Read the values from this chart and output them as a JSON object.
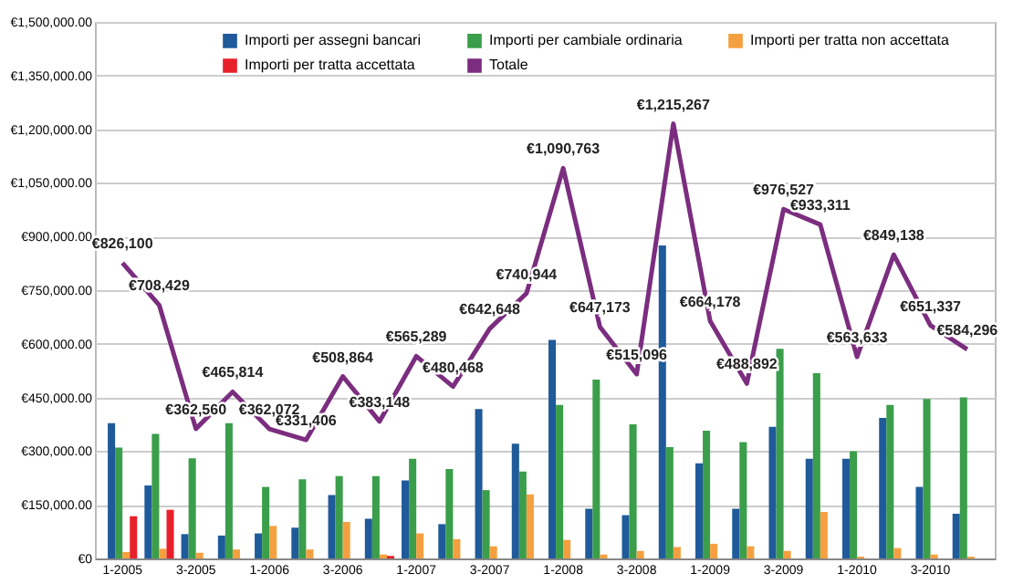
{
  "chart_data": {
    "type": "bar",
    "categories": [
      "1-2005",
      null,
      "3-2005",
      null,
      "1-2006",
      null,
      "3-2006",
      null,
      "1-2007",
      null,
      "3-2007",
      null,
      "1-2008",
      null,
      "3-2008",
      null,
      "1-2009",
      null,
      "3-2009",
      null,
      "1-2010",
      null,
      "3-2010",
      null
    ],
    "series": [
      {
        "name": "Importi per assegni bancari",
        "color": "#1f5a9a",
        "values": [
          378000,
          204000,
          68000,
          64000,
          70000,
          86000,
          177000,
          111000,
          218000,
          96000,
          418000,
          321000,
          611000,
          139000,
          121000,
          875000,
          266000,
          139000,
          368000,
          279000,
          279000,
          393000,
          200000,
          125000
        ]
      },
      {
        "name": "Importi per cambiale ordinaria",
        "color": "#3a9e4a",
        "values": [
          310000,
          348000,
          280000,
          378000,
          200000,
          221000,
          230000,
          230000,
          279000,
          250000,
          191000,
          243000,
          429000,
          500000,
          375000,
          311000,
          357000,
          325000,
          586000,
          518000,
          300000,
          429000,
          446000,
          450000
        ]
      },
      {
        "name": "Importi per tratta non accettata",
        "color": "#f5a040",
        "values": [
          18000,
          27000,
          16000,
          25000,
          91000,
          25000,
          102000,
          11000,
          70000,
          54000,
          34000,
          179000,
          52000,
          11000,
          21000,
          32000,
          41000,
          34000,
          21000,
          130000,
          5000,
          29000,
          11000,
          5000
        ]
      },
      {
        "name": "Importi per tratta accettata",
        "color": "#e8202a",
        "values": [
          118000,
          136000,
          null,
          null,
          null,
          null,
          null,
          7000,
          null,
          null,
          null,
          null,
          null,
          null,
          null,
          null,
          null,
          null,
          null,
          null,
          null,
          null,
          null,
          null
        ]
      },
      {
        "name": "Totale",
        "type": "line",
        "color": "#7b2d7f",
        "values": [
          826100,
          708429,
          362560,
          465814,
          362072,
          331406,
          508864,
          383148,
          565289,
          480468,
          642648,
          740944,
          1090763,
          647173,
          515096,
          1215267,
          664178,
          488892,
          976527,
          933311,
          563633,
          849138,
          651337,
          584296
        ],
        "value_labels": [
          "€826,100",
          "€708,429",
          "€362,560",
          "€465,814",
          "€362,072",
          "€331,406",
          "€508,864",
          "€383,148",
          "€565,289",
          "€480,468",
          "€642,648",
          "€740,944",
          "€1,090,763",
          "€647,173",
          "€515,096",
          "€1,215,267",
          "€664,178",
          "€488,892",
          "€976,527",
          "€933,311",
          "€563,633",
          "€849,138",
          "€651,337",
          "€584,296"
        ]
      }
    ],
    "ylim": [
      0,
      1500000
    ],
    "yticks": [
      {
        "value": 0,
        "label": "€0"
      },
      {
        "value": 150000,
        "label": "€150,000.00"
      },
      {
        "value": 300000,
        "label": "€300,000.00"
      },
      {
        "value": 450000,
        "label": "€450,000.00"
      },
      {
        "value": 600000,
        "label": "€600,000.00"
      },
      {
        "value": 750000,
        "label": "€750,000.00"
      },
      {
        "value": 900000,
        "label": "€900,000.00"
      },
      {
        "value": 1050000,
        "label": "€1,050,000.00"
      },
      {
        "value": 1200000,
        "label": "€1,200,000.00"
      },
      {
        "value": 1350000,
        "label": "€1,350,000.00"
      },
      {
        "value": 1500000,
        "label": "€1,500,000.00"
      }
    ],
    "grid": "y",
    "legend": "top"
  }
}
